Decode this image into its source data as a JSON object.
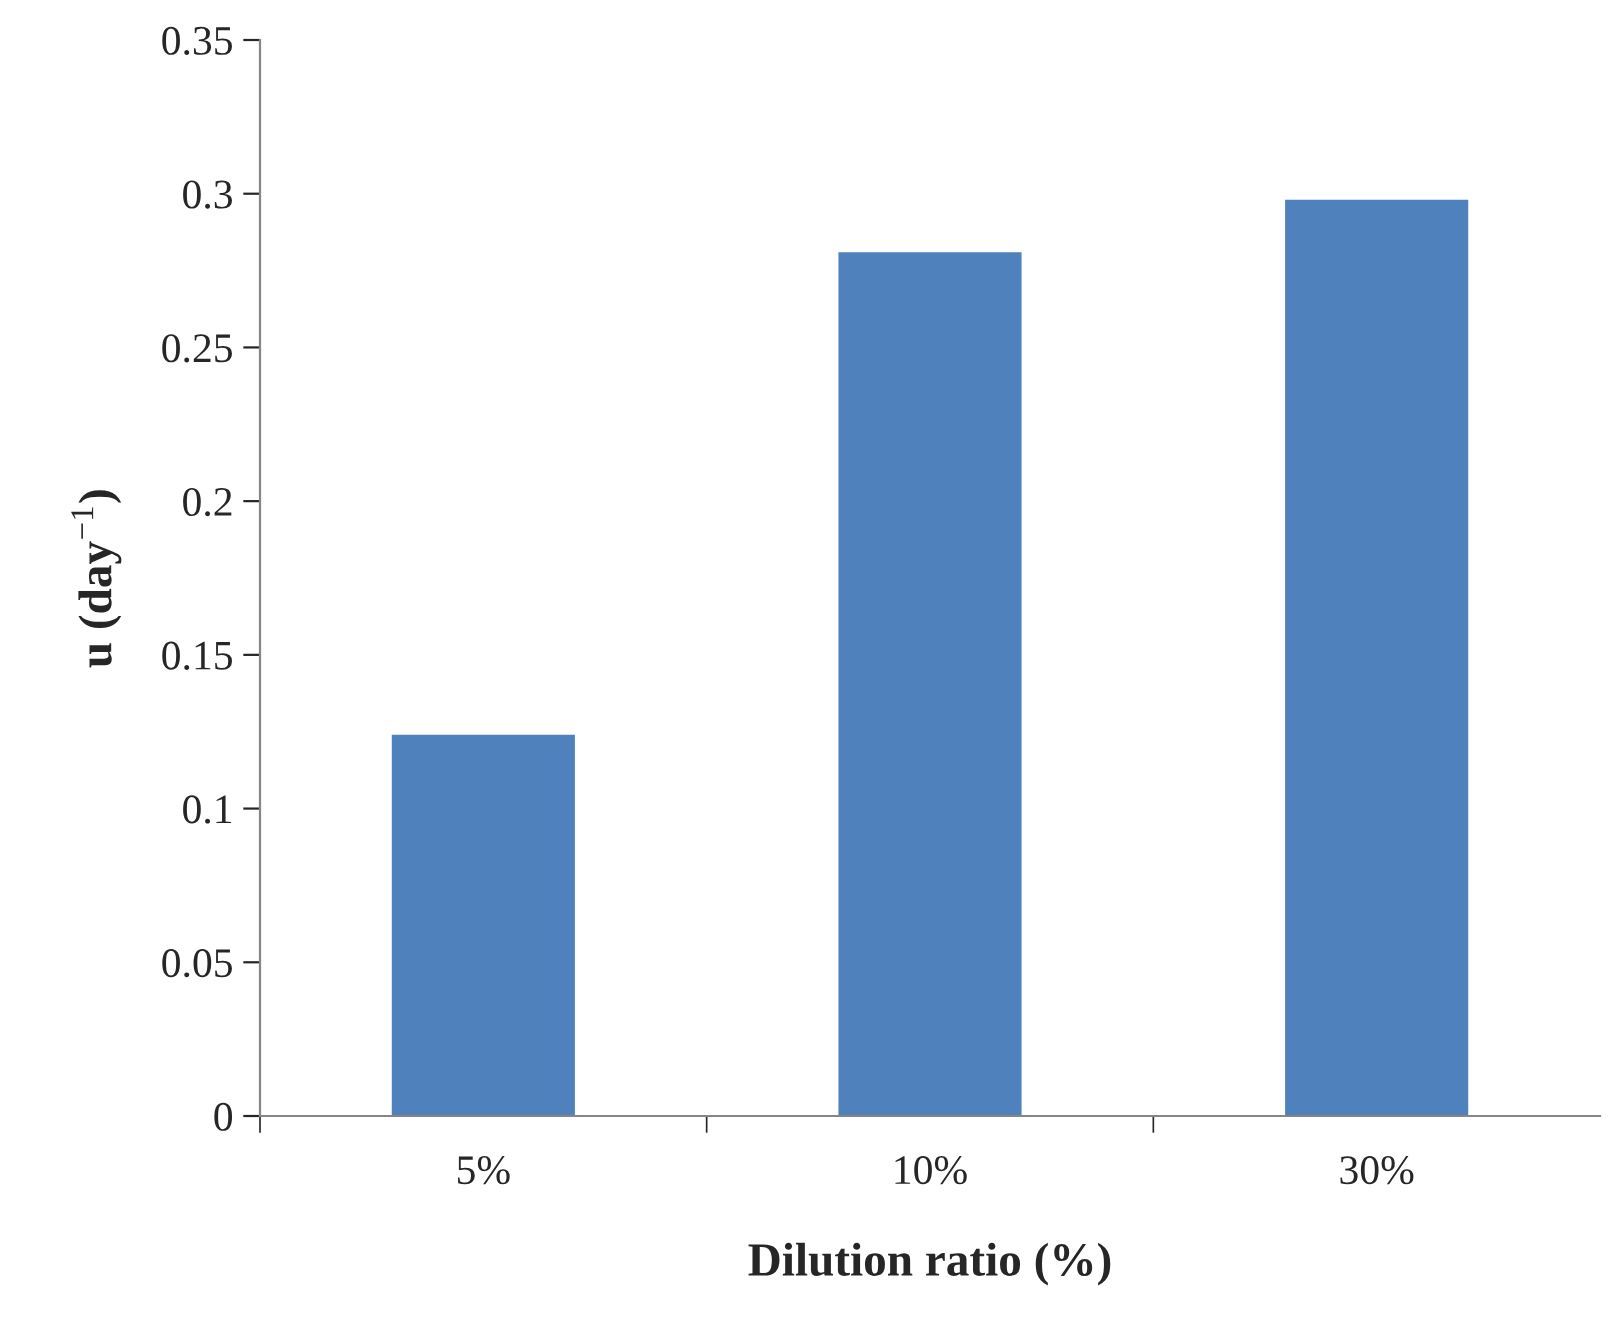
{
  "chart_data": {
    "type": "bar",
    "categories": [
      "5%",
      "10%",
      "30%"
    ],
    "values": [
      0.124,
      0.281,
      0.298
    ],
    "color": "#4f81bd",
    "xlabel": "Dilution ratio (%)",
    "ylabel": "u (day$^{−1}$)",
    "ylim": [
      0,
      0.35
    ],
    "yticks": [
      0,
      0.05,
      0.1,
      0.15,
      0.2,
      0.25,
      0.3,
      0.35
    ],
    "grid": false,
    "legend": false
  }
}
